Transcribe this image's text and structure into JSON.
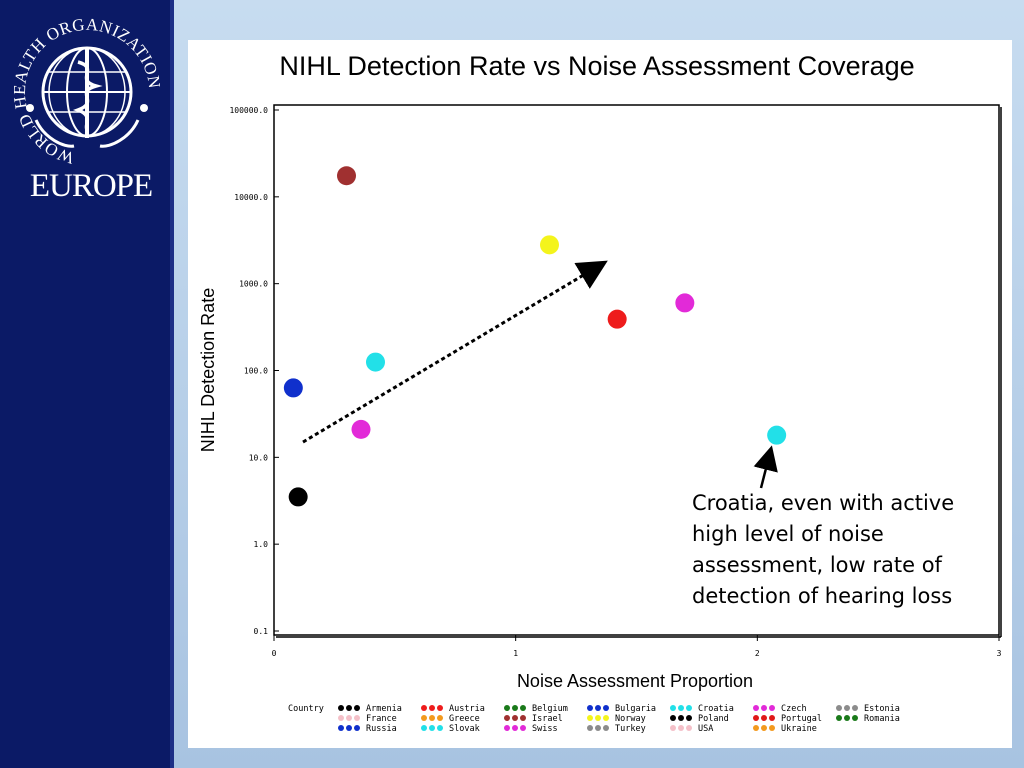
{
  "branding": {
    "logo_ring_text": "WORLD HEALTH ORGANIZATION",
    "logo_subtitle": "EUROPE",
    "sidebar_color": "#0b1a66"
  },
  "chart_data": {
    "type": "scatter",
    "title": "NIHL Detection Rate vs Noise Assessment Coverage",
    "xlabel": "Noise Assessment Proportion",
    "ylabel": "NIHL Detection Rate",
    "xlim": [
      0,
      3
    ],
    "ylim": [
      0.1,
      100000
    ],
    "yscale": "log",
    "x_ticks": [
      {
        "value": 0,
        "label": "0"
      },
      {
        "value": 1,
        "label": "1"
      },
      {
        "value": 2,
        "label": "2"
      },
      {
        "value": 3,
        "label": "3"
      }
    ],
    "y_ticks": [
      {
        "value": 0.1,
        "label": "0.1"
      },
      {
        "value": 1,
        "label": "1.0"
      },
      {
        "value": 10,
        "label": "10.0"
      },
      {
        "value": 100,
        "label": "100.0"
      },
      {
        "value": 1000,
        "label": "1000.0"
      },
      {
        "value": 10000,
        "label": "10000.0"
      },
      {
        "value": 100000,
        "label": "100000.0"
      }
    ],
    "grid": false,
    "legend": {
      "title": "Country",
      "placement": "bottom",
      "entries": [
        {
          "name": "Armenia",
          "color": "#000000"
        },
        {
          "name": "Austria",
          "color": "#ee1c1c"
        },
        {
          "name": "Belgium",
          "color": "#1a7a1a"
        },
        {
          "name": "Bulgaria",
          "color": "#1030cc"
        },
        {
          "name": "Croatia",
          "color": "#22e0e8"
        },
        {
          "name": "Czech",
          "color": "#e22ad8"
        },
        {
          "name": "Estonia",
          "color": "#8c8c8c"
        },
        {
          "name": "France",
          "color": "#f4c0c8"
        },
        {
          "name": "Greece",
          "color": "#f39a1e"
        },
        {
          "name": "Israel",
          "color": "#a03030"
        },
        {
          "name": "Norway",
          "color": "#f4f41c"
        },
        {
          "name": "Poland",
          "color": "#000000"
        },
        {
          "name": "Portugal",
          "color": "#e01818"
        },
        {
          "name": "Romania",
          "color": "#1a7a1a"
        },
        {
          "name": "Russia",
          "color": "#1030cc"
        },
        {
          "name": "Slovak",
          "color": "#22e0e8"
        },
        {
          "name": "Swiss",
          "color": "#e22ad8"
        },
        {
          "name": "Turkey",
          "color": "#8c8c8c"
        },
        {
          "name": "USA",
          "color": "#f4c0c8"
        },
        {
          "name": "Ukraine",
          "color": "#f39a1e"
        }
      ]
    },
    "points": [
      {
        "x": 0.3,
        "y": 17500,
        "color": "#a03030"
      },
      {
        "x": 1.14,
        "y": 2800,
        "color": "#f4f41c"
      },
      {
        "x": 1.7,
        "y": 600,
        "color": "#e22ad8"
      },
      {
        "x": 1.42,
        "y": 390,
        "color": "#ee1c1c"
      },
      {
        "x": 0.42,
        "y": 125,
        "color": "#22e0e8"
      },
      {
        "x": 0.08,
        "y": 63,
        "color": "#1030cc"
      },
      {
        "x": 0.36,
        "y": 21,
        "color": "#e22ad8"
      },
      {
        "x": 2.08,
        "y": 18,
        "color": "#22e0e8"
      },
      {
        "x": 0.1,
        "y": 3.5,
        "color": "#000000"
      }
    ],
    "trend_arrow": {
      "from": {
        "x": 0.12,
        "y": 15
      },
      "to": {
        "x": 1.36,
        "y": 1700
      }
    },
    "annotation": {
      "lines": [
        "Croatia, even with active",
        "high level of noise",
        "assessment, low rate of",
        "detection of hearing loss"
      ],
      "arrow_to": {
        "x": 2.08,
        "y": 18
      }
    }
  }
}
